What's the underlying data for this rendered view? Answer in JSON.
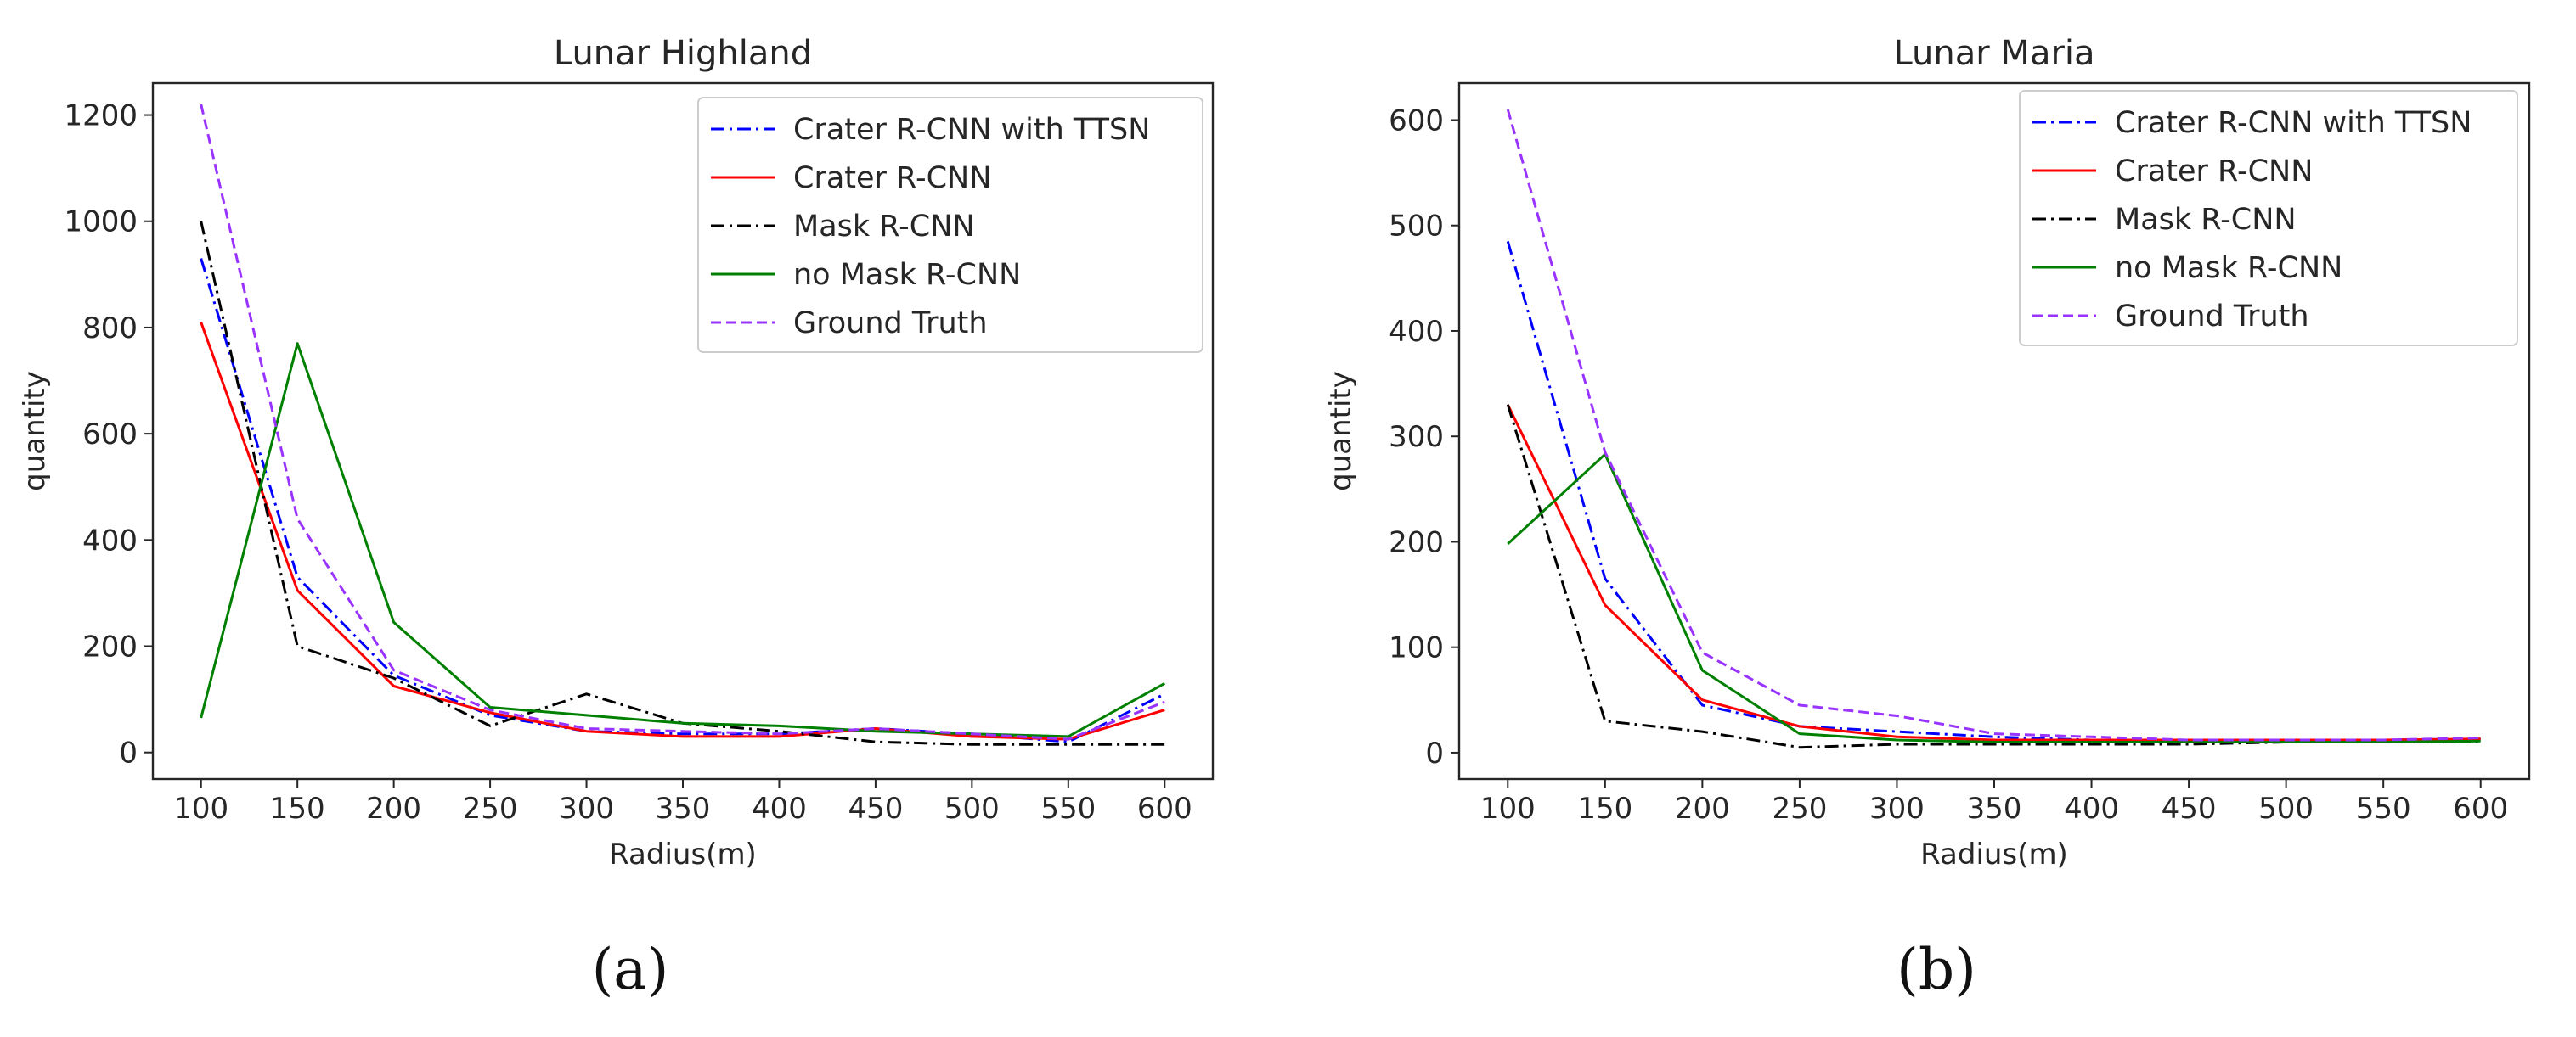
{
  "chart_data": [
    {
      "type": "line",
      "title": "Lunar Highland",
      "xlabel": "Radius(m)",
      "ylabel": "quantity",
      "caption": "(a)",
      "x": [
        100,
        150,
        200,
        250,
        300,
        350,
        400,
        450,
        500,
        550,
        600
      ],
      "xlim": [
        75,
        625
      ],
      "ylim": [
        -50,
        1260
      ],
      "xticks": [
        100,
        150,
        200,
        250,
        300,
        350,
        400,
        450,
        500,
        550,
        600
      ],
      "yticks": [
        0,
        200,
        400,
        600,
        800,
        1000,
        1200
      ],
      "legend_position": "top-right",
      "series": [
        {
          "name": "Crater R-CNN with TTSN",
          "color": "#0000ff",
          "dash": "dashdot",
          "values": [
            930,
            330,
            145,
            70,
            40,
            35,
            35,
            45,
            35,
            20,
            110
          ]
        },
        {
          "name": "Crater R-CNN",
          "color": "#ff0000",
          "dash": "solid",
          "values": [
            810,
            305,
            125,
            75,
            40,
            30,
            30,
            45,
            30,
            25,
            80
          ]
        },
        {
          "name": "Mask R-CNN",
          "color": "#000000",
          "dash": "dashdot",
          "values": [
            1000,
            200,
            140,
            50,
            110,
            55,
            40,
            20,
            15,
            15,
            15
          ]
        },
        {
          "name": "no Mask R-CNN",
          "color": "#008000",
          "dash": "solid",
          "values": [
            65,
            770,
            245,
            85,
            70,
            55,
            50,
            40,
            35,
            30,
            130
          ]
        },
        {
          "name": "Ground Truth",
          "color": "#9933ff",
          "dash": "dashed",
          "values": [
            1220,
            440,
            155,
            80,
            45,
            40,
            35,
            45,
            35,
            25,
            95
          ]
        }
      ]
    },
    {
      "type": "line",
      "title": "Lunar Maria",
      "xlabel": "Radius(m)",
      "ylabel": "quantity",
      "caption": "(b)",
      "x": [
        100,
        150,
        200,
        250,
        300,
        350,
        400,
        450,
        500,
        550,
        600
      ],
      "xlim": [
        75,
        625
      ],
      "ylim": [
        -25,
        635
      ],
      "xticks": [
        100,
        150,
        200,
        250,
        300,
        350,
        400,
        450,
        500,
        550,
        600
      ],
      "yticks": [
        0,
        100,
        200,
        300,
        400,
        500,
        600
      ],
      "legend_position": "top-right",
      "series": [
        {
          "name": "Crater R-CNN with TTSN",
          "color": "#0000ff",
          "dash": "dashdot",
          "values": [
            485,
            165,
            45,
            25,
            20,
            15,
            12,
            12,
            12,
            12,
            13
          ]
        },
        {
          "name": "Crater R-CNN",
          "color": "#ff0000",
          "dash": "solid",
          "values": [
            330,
            140,
            50,
            25,
            15,
            12,
            12,
            12,
            12,
            12,
            13
          ]
        },
        {
          "name": "Mask R-CNN",
          "color": "#000000",
          "dash": "dashdot",
          "values": [
            330,
            30,
            20,
            5,
            8,
            8,
            8,
            8,
            10,
            10,
            10
          ]
        },
        {
          "name": "no Mask R-CNN",
          "color": "#008000",
          "dash": "solid",
          "values": [
            198,
            283,
            78,
            18,
            12,
            10,
            10,
            10,
            10,
            10,
            11
          ]
        },
        {
          "name": "Ground Truth",
          "color": "#9933ff",
          "dash": "dashed",
          "values": [
            610,
            285,
            95,
            45,
            35,
            18,
            15,
            12,
            12,
            12,
            14
          ]
        }
      ]
    }
  ]
}
